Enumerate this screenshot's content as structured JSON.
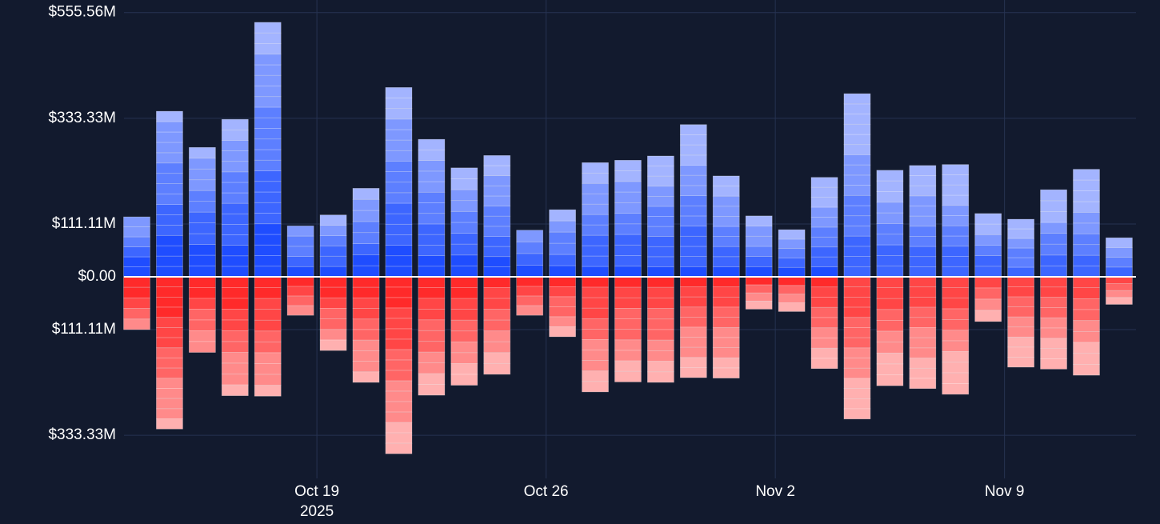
{
  "chart_data": {
    "type": "bar",
    "subtype": "diverging-stacked",
    "title": "",
    "xlabel": "",
    "ylabel": "",
    "ylim": [
      -370,
      560
    ],
    "y_ticks": [
      {
        "value": 555.56,
        "label": "$555.56M"
      },
      {
        "value": 333.33,
        "label": "$333.33M"
      },
      {
        "value": 111.11,
        "label": "$111.11M"
      },
      {
        "value": 0,
        "label": "$0.00"
      },
      {
        "value": -111.11,
        "label": "$111.11M"
      },
      {
        "value": -333.33,
        "label": "$333.33M"
      }
    ],
    "x_ticks": [
      {
        "day": 6,
        "label": "Oct 19",
        "sublabel": "2025"
      },
      {
        "day": 13,
        "label": "Oct 26",
        "sublabel": ""
      },
      {
        "day": 20,
        "label": "Nov 2",
        "sublabel": ""
      },
      {
        "day": 27,
        "label": "Nov 9",
        "sublabel": ""
      }
    ],
    "colors": {
      "background": "#121a2e",
      "grid": "#263352",
      "zero_line": "#ffffff",
      "text": "#ffffff",
      "inflow": [
        "#1f4dff",
        "#3d66ff",
        "#5d7fff",
        "#7e98ff",
        "#a3b4ff"
      ],
      "outflow": [
        "#ff2a2a",
        "#ff4646",
        "#ff6565",
        "#ff8a8a",
        "#ffb0b0"
      ]
    },
    "series": [
      {
        "name": "inflow",
        "days": [
          0,
          1,
          2,
          3,
          4,
          5,
          6,
          7,
          8,
          9,
          10,
          11,
          12,
          13,
          14,
          15,
          16,
          17,
          18,
          19,
          20,
          21,
          22,
          23,
          24,
          25,
          26,
          27,
          28,
          29,
          30
        ],
        "values": [
          126,
          348,
          272,
          331,
          535,
          107,
          130,
          186,
          398,
          289,
          229,
          255,
          98,
          141,
          240,
          245,
          254,
          320,
          212,
          128,
          99,
          209,
          385,
          224,
          234,
          236,
          133,
          121,
          183,
          226,
          82
        ]
      },
      {
        "name": "outflow",
        "days": [
          0,
          1,
          2,
          3,
          4,
          5,
          6,
          7,
          8,
          9,
          10,
          11,
          12,
          13,
          14,
          15,
          16,
          17,
          18,
          19,
          20,
          21,
          22,
          23,
          24,
          25,
          26,
          27,
          28,
          29,
          30
        ],
        "values": [
          -111,
          -320,
          -159,
          -250,
          -251,
          -81,
          -155,
          -222,
          -372,
          -249,
          -228,
          -205,
          -81,
          -126,
          -242,
          -221,
          -222,
          -212,
          -213,
          -68,
          -73,
          -193,
          -299,
          -229,
          -235,
          -247,
          -94,
          -190,
          -194,
          -207,
          -58
        ]
      }
    ]
  }
}
